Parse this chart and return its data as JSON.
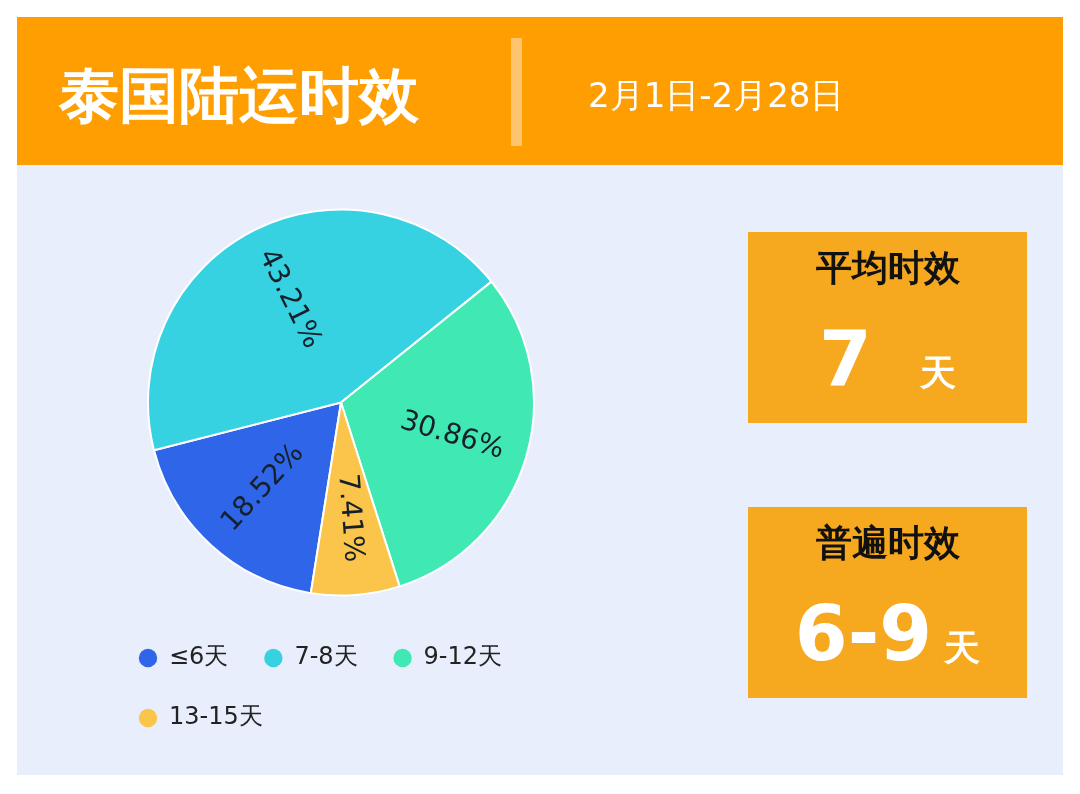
{
  "chart_data": [
    {
      "type": "pie",
      "title": "泰国陆运时效",
      "subtitle": "2月1日-2月28日",
      "categories": [
        "≤6天",
        "7-8天",
        "9-12天",
        "13-15天"
      ],
      "values": [
        18.52,
        43.21,
        30.86,
        7.41
      ],
      "colors": [
        "#2f65e8",
        "#36d2e2",
        "#40e8b4",
        "#fac54a"
      ],
      "value_labels": [
        "18.52%",
        "43.21%",
        "30.86%",
        "7.41%"
      ],
      "legend": "bottom left"
    },
    {
      "type": "other",
      "title": "平均时效",
      "annotations": [
        "7",
        "天"
      ]
    },
    {
      "type": "other",
      "title": "普遍时效",
      "annotations": [
        "6-9",
        "天"
      ]
    }
  ]
}
